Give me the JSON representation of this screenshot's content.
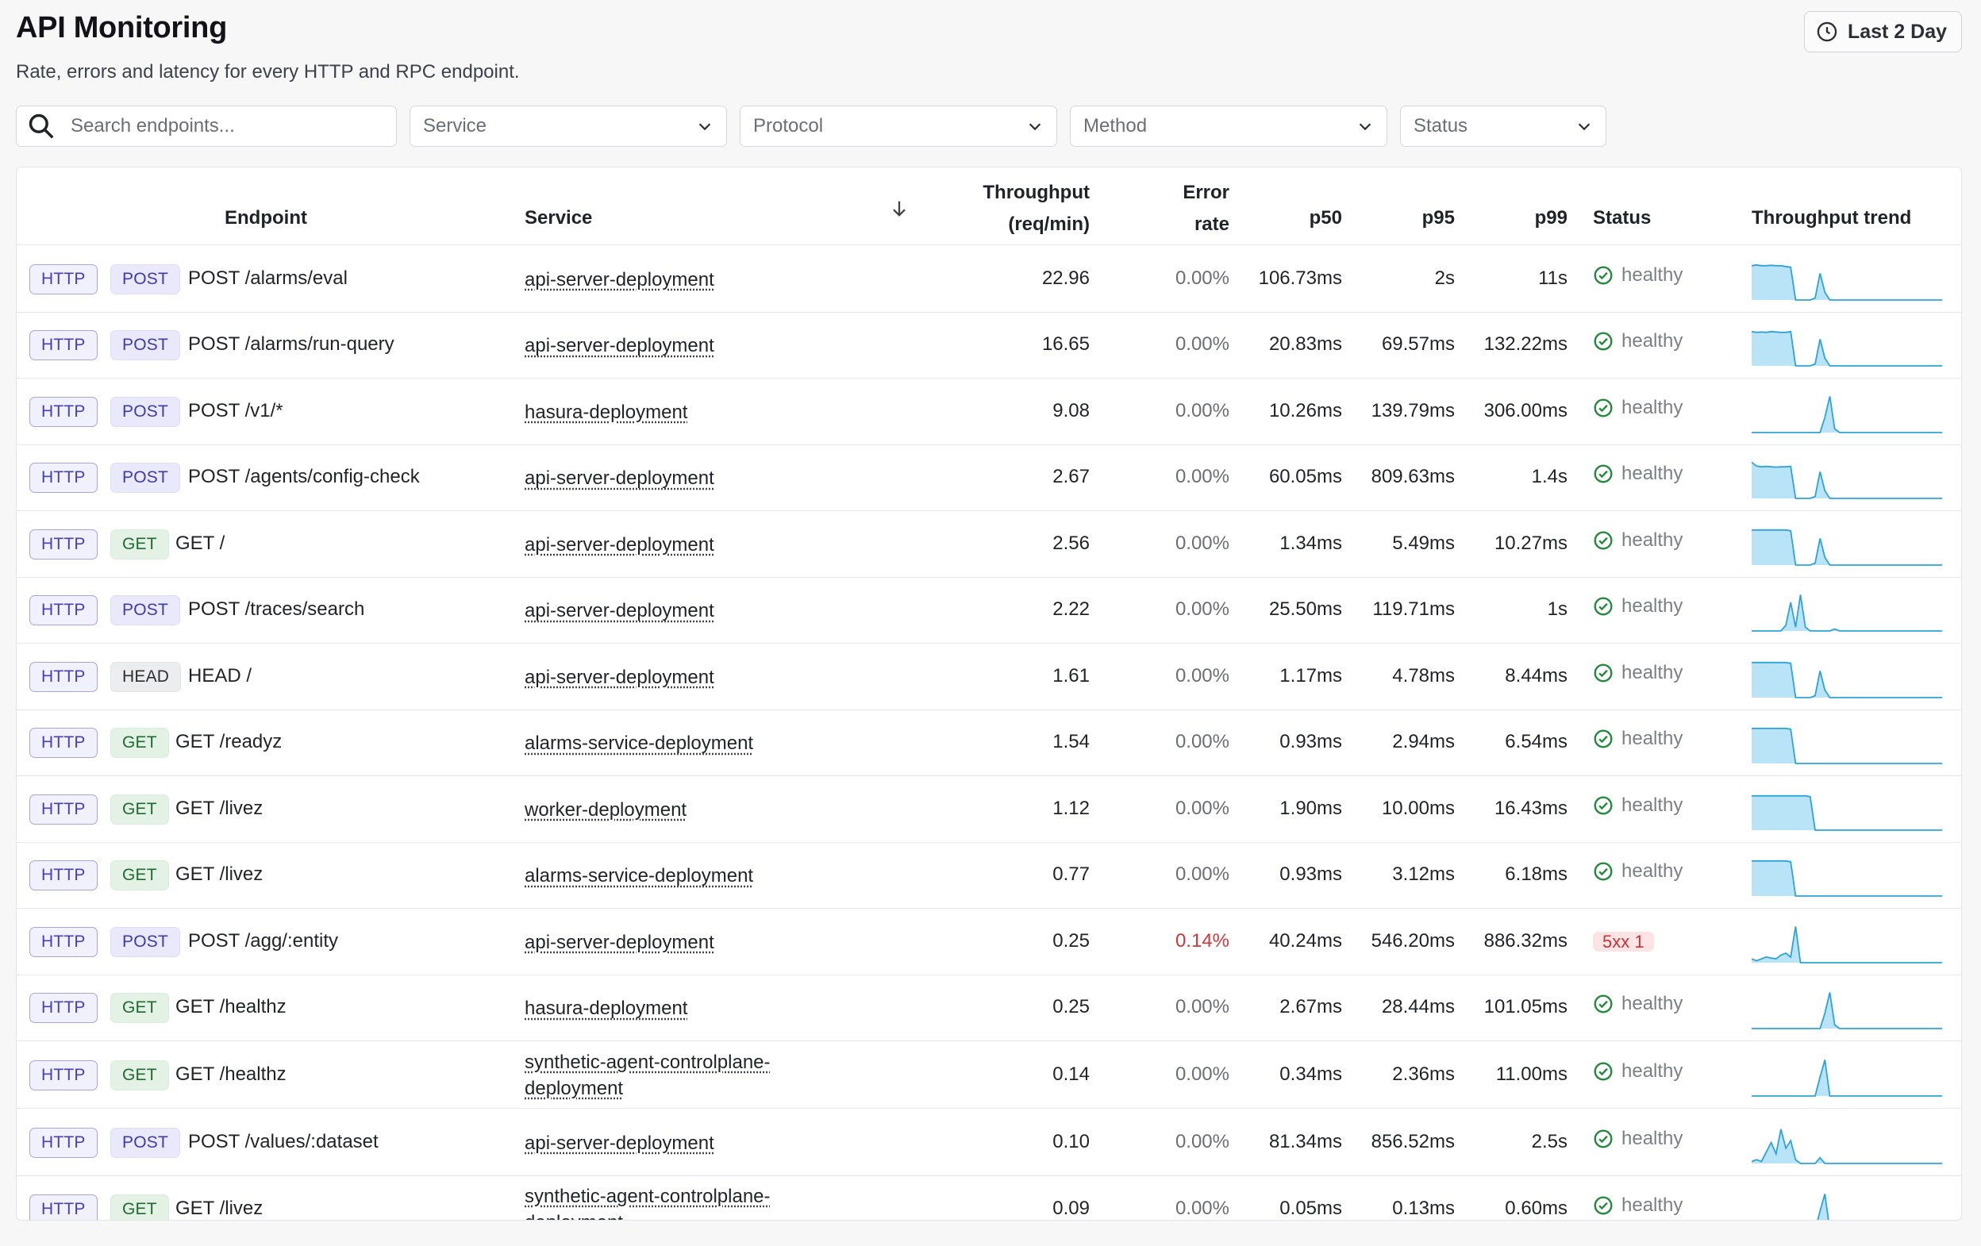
{
  "header": {
    "title": "API Monitoring",
    "subtitle": "Rate, errors and latency for every HTTP and RPC endpoint.",
    "time_range_label": "Last 2 Day"
  },
  "filters": {
    "search_placeholder": "Search endpoints...",
    "service_label": "Service",
    "protocol_label": "Protocol",
    "method_label": "Method",
    "status_label": "Status"
  },
  "table": {
    "headers": {
      "endpoint": "Endpoint",
      "service": "Service",
      "throughput_line1": "Throughput",
      "throughput_line2": "(req/min)",
      "error_line1": "Error",
      "error_line2": "rate",
      "p50": "p50",
      "p95": "p95",
      "p99": "p99",
      "status": "Status",
      "trend": "Throughput trend"
    },
    "sort_icon": "arrow-down-icon",
    "accent_color": "#2ea3d8",
    "fill_color": "#b9e3f7",
    "rows": [
      {
        "protocol": "HTTP",
        "method": "POST",
        "path": "POST /alarms/eval",
        "service": "api-server-deployment",
        "throughput": "22.96",
        "error_rate": "0.00%",
        "p50": "106.73ms",
        "p95": "2s",
        "p99": "11s",
        "status": "healthy",
        "error": false,
        "trend": [
          0.9,
          0.92,
          0.9,
          0.9,
          0.91,
          0.9,
          0.9,
          0.88,
          0.86,
          0,
          0,
          0,
          0,
          0.05,
          0.7,
          0.2,
          0,
          0,
          0,
          0,
          0,
          0,
          0,
          0,
          0,
          0,
          0,
          0,
          0,
          0,
          0,
          0,
          0,
          0,
          0,
          0,
          0,
          0,
          0,
          0
        ]
      },
      {
        "protocol": "HTTP",
        "method": "POST",
        "path": "POST /alarms/run-query",
        "service": "api-server-deployment",
        "throughput": "16.65",
        "error_rate": "0.00%",
        "p50": "20.83ms",
        "p95": "69.57ms",
        "p99": "132.22ms",
        "status": "healthy",
        "error": false,
        "trend": [
          0.9,
          0.88,
          0.89,
          0.88,
          0.9,
          0.89,
          0.88,
          0.88,
          0.9,
          0,
          0,
          0,
          0,
          0.05,
          0.7,
          0.2,
          0,
          0,
          0,
          0,
          0,
          0,
          0,
          0,
          0,
          0,
          0,
          0,
          0,
          0,
          0,
          0,
          0,
          0,
          0,
          0,
          0,
          0,
          0,
          0
        ]
      },
      {
        "protocol": "HTTP",
        "method": "POST",
        "path": "POST /v1/*",
        "service": "hasura-deployment",
        "throughput": "9.08",
        "error_rate": "0.00%",
        "p50": "10.26ms",
        "p95": "139.79ms",
        "p99": "306.00ms",
        "status": "healthy",
        "error": false,
        "trend": [
          0,
          0,
          0,
          0,
          0,
          0,
          0,
          0,
          0,
          0,
          0,
          0,
          0,
          0,
          0,
          0.4,
          0.95,
          0.1,
          0,
          0,
          0,
          0,
          0,
          0,
          0,
          0,
          0,
          0,
          0,
          0,
          0,
          0,
          0,
          0,
          0,
          0,
          0,
          0,
          0,
          0
        ]
      },
      {
        "protocol": "HTTP",
        "method": "POST",
        "path": "POST /agents/config-check",
        "service": "api-server-deployment",
        "throughput": "2.67",
        "error_rate": "0.00%",
        "p50": "60.05ms",
        "p95": "809.63ms",
        "p99": "1.4s",
        "status": "healthy",
        "error": false,
        "trend": [
          0.95,
          0.85,
          0.83,
          0.84,
          0.83,
          0.82,
          0.83,
          0.83,
          0.84,
          0,
          0,
          0,
          0,
          0.05,
          0.7,
          0.2,
          0,
          0,
          0,
          0,
          0,
          0,
          0,
          0,
          0,
          0,
          0,
          0,
          0,
          0,
          0,
          0,
          0,
          0,
          0,
          0,
          0,
          0,
          0,
          0
        ]
      },
      {
        "protocol": "HTTP",
        "method": "GET",
        "path": "GET /",
        "service": "api-server-deployment",
        "throughput": "2.56",
        "error_rate": "0.00%",
        "p50": "1.34ms",
        "p95": "5.49ms",
        "p99": "10.27ms",
        "status": "healthy",
        "error": false,
        "trend": [
          0.92,
          0.92,
          0.92,
          0.92,
          0.92,
          0.92,
          0.92,
          0.92,
          0.9,
          0,
          0,
          0,
          0,
          0.05,
          0.7,
          0.2,
          0,
          0,
          0,
          0,
          0,
          0,
          0,
          0,
          0,
          0,
          0,
          0,
          0,
          0,
          0,
          0,
          0,
          0,
          0,
          0,
          0,
          0,
          0,
          0
        ]
      },
      {
        "protocol": "HTTP",
        "method": "POST",
        "path": "POST /traces/search",
        "service": "api-server-deployment",
        "throughput": "2.22",
        "error_rate": "0.00%",
        "p50": "25.50ms",
        "p95": "119.71ms",
        "p99": "1s",
        "status": "healthy",
        "error": false,
        "trend": [
          0,
          0,
          0,
          0,
          0,
          0,
          0,
          0.15,
          0.75,
          0.1,
          0.95,
          0.1,
          0,
          0,
          0,
          0,
          0,
          0.05,
          0,
          0,
          0,
          0,
          0,
          0,
          0,
          0,
          0,
          0,
          0,
          0,
          0,
          0,
          0,
          0,
          0,
          0,
          0,
          0,
          0,
          0
        ]
      },
      {
        "protocol": "HTTP",
        "method": "HEAD",
        "path": "HEAD /",
        "service": "api-server-deployment",
        "throughput": "1.61",
        "error_rate": "0.00%",
        "p50": "1.17ms",
        "p95": "4.78ms",
        "p99": "8.44ms",
        "status": "healthy",
        "error": false,
        "trend": [
          0.92,
          0.92,
          0.92,
          0.92,
          0.92,
          0.92,
          0.92,
          0.92,
          0.9,
          0,
          0,
          0,
          0,
          0.05,
          0.7,
          0.2,
          0,
          0,
          0,
          0,
          0,
          0,
          0,
          0,
          0,
          0,
          0,
          0,
          0,
          0,
          0,
          0,
          0,
          0,
          0,
          0,
          0,
          0,
          0,
          0
        ]
      },
      {
        "protocol": "HTTP",
        "method": "GET",
        "path": "GET /readyz",
        "service": "alarms-service-deployment",
        "throughput": "1.54",
        "error_rate": "0.00%",
        "p50": "0.93ms",
        "p95": "2.94ms",
        "p99": "6.54ms",
        "status": "healthy",
        "error": false,
        "trend": [
          0.92,
          0.92,
          0.92,
          0.92,
          0.92,
          0.92,
          0.92,
          0.92,
          0.9,
          0,
          0,
          0,
          0,
          0,
          0,
          0,
          0,
          0,
          0,
          0,
          0,
          0,
          0,
          0,
          0,
          0,
          0,
          0,
          0,
          0,
          0,
          0,
          0,
          0,
          0,
          0,
          0,
          0,
          0,
          0
        ]
      },
      {
        "protocol": "HTTP",
        "method": "GET",
        "path": "GET /livez",
        "service": "worker-deployment",
        "throughput": "1.12",
        "error_rate": "0.00%",
        "p50": "1.90ms",
        "p95": "10.00ms",
        "p99": "16.43ms",
        "status": "healthy",
        "error": false,
        "trend": [
          0.9,
          0.9,
          0.9,
          0.9,
          0.9,
          0.9,
          0.9,
          0.9,
          0.9,
          0.9,
          0.9,
          0.9,
          0.88,
          0,
          0,
          0,
          0,
          0,
          0,
          0,
          0,
          0,
          0,
          0,
          0,
          0,
          0,
          0,
          0,
          0,
          0,
          0,
          0,
          0,
          0,
          0,
          0,
          0,
          0,
          0
        ]
      },
      {
        "protocol": "HTTP",
        "method": "GET",
        "path": "GET /livez",
        "service": "alarms-service-deployment",
        "throughput": "0.77",
        "error_rate": "0.00%",
        "p50": "0.93ms",
        "p95": "3.12ms",
        "p99": "6.18ms",
        "status": "healthy",
        "error": false,
        "trend": [
          0.92,
          0.92,
          0.92,
          0.92,
          0.92,
          0.92,
          0.92,
          0.92,
          0.9,
          0,
          0,
          0,
          0,
          0,
          0,
          0,
          0,
          0,
          0,
          0,
          0,
          0,
          0,
          0,
          0,
          0,
          0,
          0,
          0,
          0,
          0,
          0,
          0,
          0,
          0,
          0,
          0,
          0,
          0,
          0
        ]
      },
      {
        "protocol": "HTTP",
        "method": "POST",
        "path": "POST /agg/:entity",
        "service": "api-server-deployment",
        "throughput": "0.25",
        "error_rate": "0.14%",
        "p50": "40.24ms",
        "p95": "546.20ms",
        "p99": "886.32ms",
        "status": "5xx 1",
        "error": true,
        "trend": [
          0.1,
          0.05,
          0.1,
          0.15,
          0.12,
          0.1,
          0.2,
          0.25,
          0.15,
          0.95,
          0,
          0,
          0,
          0,
          0,
          0,
          0,
          0,
          0,
          0,
          0,
          0,
          0,
          0,
          0,
          0,
          0,
          0,
          0,
          0,
          0,
          0,
          0,
          0,
          0,
          0,
          0,
          0,
          0,
          0
        ]
      },
      {
        "protocol": "HTTP",
        "method": "GET",
        "path": "GET /healthz",
        "service": "hasura-deployment",
        "throughput": "0.25",
        "error_rate": "0.00%",
        "p50": "2.67ms",
        "p95": "28.44ms",
        "p99": "101.05ms",
        "status": "healthy",
        "error": false,
        "trend": [
          0,
          0,
          0,
          0,
          0,
          0,
          0,
          0,
          0,
          0,
          0,
          0,
          0,
          0,
          0,
          0.4,
          0.95,
          0.1,
          0,
          0,
          0,
          0,
          0,
          0,
          0,
          0,
          0,
          0,
          0,
          0,
          0,
          0,
          0,
          0,
          0,
          0,
          0,
          0,
          0,
          0
        ]
      },
      {
        "protocol": "HTTP",
        "method": "GET",
        "path": "GET /healthz",
        "service": "synthetic-agent-controlplane-deployment",
        "throughput": "0.14",
        "error_rate": "0.00%",
        "p50": "0.34ms",
        "p95": "2.36ms",
        "p99": "11.00ms",
        "status": "healthy",
        "error": false,
        "trend": [
          0,
          0,
          0,
          0,
          0,
          0,
          0,
          0,
          0,
          0,
          0,
          0,
          0,
          0,
          0.5,
          0.95,
          0,
          0,
          0,
          0,
          0,
          0,
          0,
          0,
          0,
          0,
          0,
          0,
          0,
          0,
          0,
          0,
          0,
          0,
          0,
          0,
          0,
          0,
          0,
          0
        ]
      },
      {
        "protocol": "HTTP",
        "method": "POST",
        "path": "POST /values/:dataset",
        "service": "api-server-deployment",
        "throughput": "0.10",
        "error_rate": "0.00%",
        "p50": "81.34ms",
        "p95": "856.52ms",
        "p99": "2.5s",
        "status": "healthy",
        "error": false,
        "trend": [
          0.05,
          0.1,
          0.05,
          0.3,
          0.55,
          0.25,
          0.9,
          0.4,
          0.6,
          0.1,
          0,
          0,
          0,
          0,
          0.15,
          0,
          0,
          0,
          0,
          0,
          0,
          0,
          0,
          0,
          0,
          0,
          0,
          0,
          0,
          0,
          0,
          0,
          0,
          0,
          0,
          0,
          0,
          0,
          0,
          0
        ]
      },
      {
        "protocol": "HTTP",
        "method": "GET",
        "path": "GET /livez",
        "service": "synthetic-agent-controlplane-deployment",
        "throughput": "0.09",
        "error_rate": "0.00%",
        "p50": "0.05ms",
        "p95": "0.13ms",
        "p99": "0.60ms",
        "status": "healthy",
        "error": false,
        "trend": [
          0,
          0,
          0,
          0,
          0,
          0,
          0,
          0,
          0,
          0,
          0,
          0,
          0,
          0,
          0.5,
          0.95,
          0,
          0,
          0,
          0,
          0,
          0,
          0,
          0,
          0,
          0,
          0,
          0,
          0,
          0,
          0,
          0,
          0,
          0,
          0,
          0,
          0,
          0,
          0,
          0
        ]
      }
    ]
  }
}
